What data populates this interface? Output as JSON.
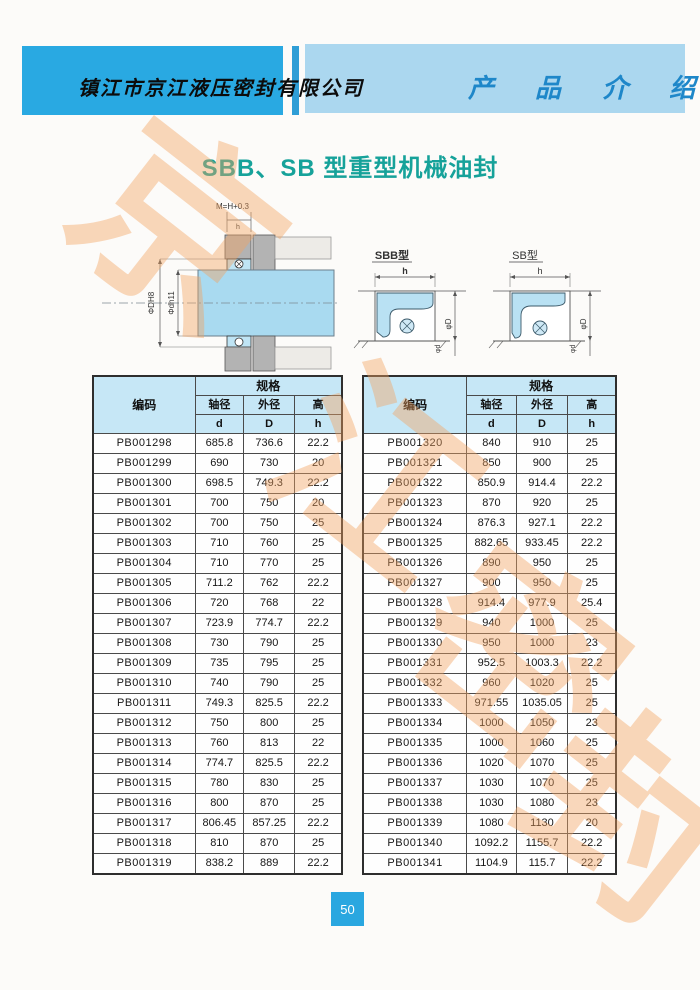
{
  "header": {
    "company": "镇江市京江液压密封有限公司",
    "section": "产 品 介 绍"
  },
  "title": "SBB、SB 型重型机械油封",
  "watermark": {
    "chars": [
      "京",
      "江",
      "密",
      "封"
    ]
  },
  "diagram": {
    "left": {
      "top_label": "M=H+0.3",
      "h_label": "h",
      "dim_outer": "ΦDH8",
      "dim_inner": "Φdh11"
    },
    "sbb": {
      "label": "SBB型",
      "h": "h",
      "phi_D": "φD",
      "phi_d": "φd"
    },
    "sb": {
      "label": "SB型",
      "h": "h",
      "phi_D": "φD",
      "phi_d": "φd"
    }
  },
  "table_header": {
    "code": "编码",
    "spec": "规格",
    "shaft": "轴径",
    "outer": "外径",
    "height": "高",
    "d": "d",
    "D": "D",
    "h": "h"
  },
  "tables": [
    {
      "rows": [
        [
          "PB001298",
          "685.8",
          "736.6",
          "22.2"
        ],
        [
          "PB001299",
          "690",
          "730",
          "20"
        ],
        [
          "PB001300",
          "698.5",
          "749.3",
          "22.2"
        ],
        [
          "PB001301",
          "700",
          "750",
          "20"
        ],
        [
          "PB001302",
          "700",
          "750",
          "25"
        ],
        [
          "PB001303",
          "710",
          "760",
          "25"
        ],
        [
          "PB001304",
          "710",
          "770",
          "25"
        ],
        [
          "PB001305",
          "711.2",
          "762",
          "22.2"
        ],
        [
          "PB001306",
          "720",
          "768",
          "22"
        ],
        [
          "PB001307",
          "723.9",
          "774.7",
          "22.2"
        ],
        [
          "PB001308",
          "730",
          "790",
          "25"
        ],
        [
          "PB001309",
          "735",
          "795",
          "25"
        ],
        [
          "PB001310",
          "740",
          "790",
          "25"
        ],
        [
          "PB001311",
          "749.3",
          "825.5",
          "22.2"
        ],
        [
          "PB001312",
          "750",
          "800",
          "25"
        ],
        [
          "PB001313",
          "760",
          "813",
          "22"
        ],
        [
          "PB001314",
          "774.7",
          "825.5",
          "22.2"
        ],
        [
          "PB001315",
          "780",
          "830",
          "25"
        ],
        [
          "PB001316",
          "800",
          "870",
          "25"
        ],
        [
          "PB001317",
          "806.45",
          "857.25",
          "22.2"
        ],
        [
          "PB001318",
          "810",
          "870",
          "25"
        ],
        [
          "PB001319",
          "838.2",
          "889",
          "22.2"
        ]
      ]
    },
    {
      "rows": [
        [
          "PB001320",
          "840",
          "910",
          "25"
        ],
        [
          "PB001321",
          "850",
          "900",
          "25"
        ],
        [
          "PB001322",
          "850.9",
          "914.4",
          "22.2"
        ],
        [
          "PB001323",
          "870",
          "920",
          "25"
        ],
        [
          "PB001324",
          "876.3",
          "927.1",
          "22.2"
        ],
        [
          "PB001325",
          "882.65",
          "933.45",
          "22.2"
        ],
        [
          "PB001326",
          "890",
          "950",
          "25"
        ],
        [
          "PB001327",
          "900",
          "950",
          "25"
        ],
        [
          "PB001328",
          "914.4",
          "977.9",
          "25.4"
        ],
        [
          "PB001329",
          "940",
          "1000",
          "25"
        ],
        [
          "PB001330",
          "950",
          "1000",
          "23"
        ],
        [
          "PB001331",
          "952.5",
          "1003.3",
          "22.2"
        ],
        [
          "PB001332",
          "960",
          "1020",
          "25"
        ],
        [
          "PB001333",
          "971.55",
          "1035.05",
          "25"
        ],
        [
          "PB001334",
          "1000",
          "1050",
          "23"
        ],
        [
          "PB001335",
          "1000",
          "1060",
          "25"
        ],
        [
          "PB001336",
          "1020",
          "1070",
          "25"
        ],
        [
          "PB001337",
          "1030",
          "1070",
          "25"
        ],
        [
          "PB001338",
          "1030",
          "1080",
          "23"
        ],
        [
          "PB001339",
          "1080",
          "1130",
          "20"
        ],
        [
          "PB001340",
          "1092.2",
          "1155.7",
          "22.2"
        ],
        [
          "PB001341",
          "1104.9",
          "115.7",
          "22.2"
        ]
      ]
    }
  ],
  "footer": {
    "page_number": "50"
  }
}
